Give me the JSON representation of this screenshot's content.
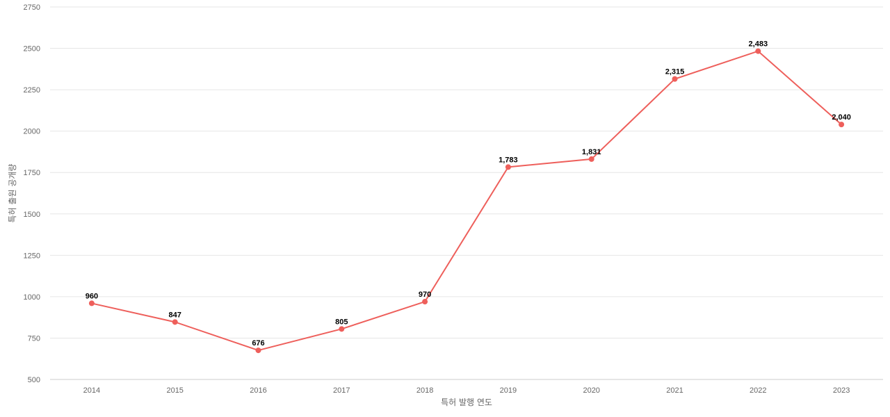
{
  "chart_data": {
    "type": "line",
    "title": "",
    "xlabel": "특허 발행 연도",
    "ylabel": "특허 출원 공개량",
    "categories": [
      "2014",
      "2015",
      "2016",
      "2017",
      "2018",
      "2019",
      "2020",
      "2021",
      "2022",
      "2023"
    ],
    "series": [
      {
        "values": [
          960,
          847,
          676,
          805,
          970,
          1783,
          1831,
          2315,
          2483,
          2040
        ],
        "data_labels": [
          "960",
          "847",
          "676",
          "805",
          "970",
          "1,783",
          "1,831",
          "2,315",
          "2,483",
          "2,040"
        ],
        "color": "#ee5f5b"
      }
    ],
    "ylim": [
      500,
      2750
    ],
    "yticks": [
      500,
      750,
      1000,
      1250,
      1500,
      1750,
      2000,
      2250,
      2500,
      2750
    ],
    "ytick_labels": [
      "500",
      "750",
      "1000",
      "1250",
      "1500",
      "1750",
      "2000",
      "2250",
      "2500",
      "2750"
    ],
    "grid": true,
    "legend": "none"
  }
}
